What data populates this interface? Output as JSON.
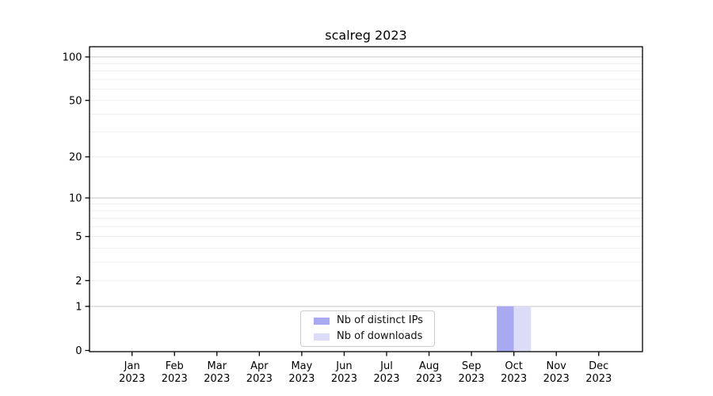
{
  "chart_data": {
    "type": "bar",
    "title": "scalreg 2023",
    "categories": [
      "Jan 2023",
      "Feb 2023",
      "Mar 2023",
      "Apr 2023",
      "May 2023",
      "Jun 2023",
      "Jul 2023",
      "Aug 2023",
      "Sep 2023",
      "Oct 2023",
      "Nov 2023",
      "Dec 2023"
    ],
    "series": [
      {
        "name": "Nb of distinct IPs",
        "color": "#a9a9f2",
        "values": [
          0,
          0,
          0,
          0,
          0,
          0,
          0,
          0,
          0,
          1,
          0,
          0
        ]
      },
      {
        "name": "Nb of downloads",
        "color": "#dcdcf8",
        "values": [
          0,
          0,
          0,
          0,
          0,
          0,
          0,
          0,
          0,
          1,
          0,
          0
        ]
      }
    ],
    "y_axis": {
      "scale": "log1p",
      "ticks": [
        0,
        1,
        2,
        5,
        10,
        20,
        50,
        100
      ],
      "major_gridlines": [
        1,
        10,
        100
      ],
      "minor_gridlines": [
        2,
        3,
        4,
        5,
        6,
        7,
        8,
        9,
        20,
        30,
        40,
        50,
        60,
        70,
        80,
        90
      ],
      "range": [
        0,
        118
      ]
    },
    "x_axis": {
      "label_lines": 2
    },
    "legend": {
      "position": "bottom-center",
      "border_color": "#cccccc"
    },
    "grid": true,
    "colors": {
      "grid_major": "#c6c6c6",
      "grid_minor": "#ededed",
      "axis": "#000000",
      "text": "#000000",
      "background": "#ffffff"
    }
  }
}
